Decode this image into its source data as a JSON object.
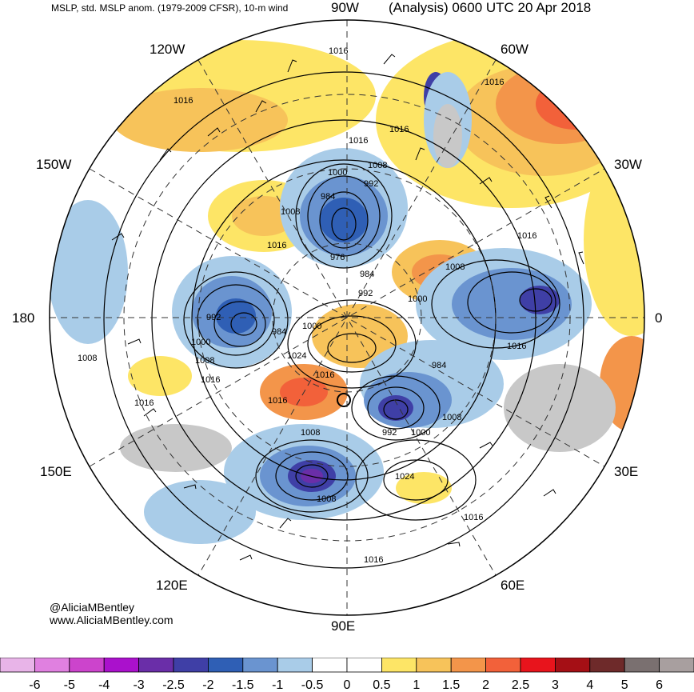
{
  "header": {
    "left_title": "MSLP, std. MSLP anom. (1979-2009 CFSR), 10-m wind",
    "right_title": "(Analysis) 0600 UTC 20 Apr 2018"
  },
  "longitude_labels": {
    "lon_90w": "90W",
    "lon_60w": "60W",
    "lon_30w": "30W",
    "lon_0": "0",
    "lon_30e": "30E",
    "lon_60e": "60E",
    "lon_90e": "90E",
    "lon_120e": "120E",
    "lon_150e": "150E",
    "lon_180": "180",
    "lon_150w": "150W",
    "lon_120w": "120W"
  },
  "credits": {
    "handle": "@AliciaMBentley",
    "website": "www.AliciaMBentley.com"
  },
  "contour_labels": [
    {
      "name": "label-1016-a",
      "text": "1016"
    },
    {
      "name": "label-1016-b",
      "text": "1016"
    },
    {
      "name": "label-1016-c",
      "text": "1016"
    },
    {
      "name": "label-1016-d",
      "text": "1016"
    },
    {
      "name": "label-1016-e",
      "text": "1016"
    },
    {
      "name": "label-1016-f",
      "text": "1016"
    },
    {
      "name": "label-1016-g",
      "text": "1016"
    },
    {
      "name": "label-1016-h",
      "text": "1016"
    },
    {
      "name": "label-1016-i",
      "text": "1016"
    },
    {
      "name": "label-1016-j",
      "text": "1016"
    },
    {
      "name": "label-1016-k",
      "text": "1016"
    },
    {
      "name": "label-1016-l",
      "text": "1016"
    },
    {
      "name": "label-1016-m",
      "text": "1016"
    },
    {
      "name": "label-1016-n",
      "text": "1016"
    },
    {
      "name": "label-1008-a",
      "text": "1008"
    },
    {
      "name": "label-1008-b",
      "text": "1008"
    },
    {
      "name": "label-1008-c",
      "text": "1008"
    },
    {
      "name": "label-1008-d",
      "text": "1008"
    },
    {
      "name": "label-1008-e",
      "text": "1008"
    },
    {
      "name": "label-1008-f",
      "text": "1008"
    },
    {
      "name": "label-1008-g",
      "text": "1008"
    },
    {
      "name": "label-1008-h",
      "text": "1008"
    },
    {
      "name": "label-1000-a",
      "text": "1000"
    },
    {
      "name": "label-1000-b",
      "text": "1000"
    },
    {
      "name": "label-1000-c",
      "text": "1000"
    },
    {
      "name": "label-1000-d",
      "text": "1000"
    },
    {
      "name": "label-1000-e",
      "text": "1000"
    },
    {
      "name": "label-992-a",
      "text": "992"
    },
    {
      "name": "label-992-b",
      "text": "992"
    },
    {
      "name": "label-992-c",
      "text": "992"
    },
    {
      "name": "label-992-d",
      "text": "992"
    },
    {
      "name": "label-984-a",
      "text": "984"
    },
    {
      "name": "label-984-b",
      "text": "984"
    },
    {
      "name": "label-984-c",
      "text": "984"
    },
    {
      "name": "label-984-d",
      "text": "984"
    },
    {
      "name": "label-976",
      "text": "976"
    },
    {
      "name": "label-1024-a",
      "text": "1024"
    },
    {
      "name": "label-1024-b",
      "text": "1024"
    }
  ],
  "colorbar": {
    "colors": [
      "#e8b4e8",
      "#e080e0",
      "#cc44cc",
      "#aa11cc",
      "#6a2ea8",
      "#3f3fa6",
      "#2f5fb5",
      "#6a94d0",
      "#a9cce8",
      "#ffffff",
      "#ffffff",
      "#fde566",
      "#f7c35a",
      "#f3954a",
      "#f2613a",
      "#e8141c",
      "#a50f15",
      "#6e2a2a",
      "#7a7070",
      "#a89f9f"
    ],
    "tick_labels": [
      "-6",
      "-5",
      "-4",
      "-3",
      "-2.5",
      "-2",
      "-1.5",
      "-1",
      "-0.5",
      "0",
      "0.5",
      "1",
      "1.5",
      "2",
      "2.5",
      "3",
      "4",
      "5",
      "6"
    ]
  },
  "palette": {
    "positive_anomaly": "#f7c35a",
    "strong_positive": "#f2613a",
    "negative_anomaly": "#a9cce8",
    "strong_negative": "#3f3fa6",
    "land_gray": "#c8c8c8"
  }
}
